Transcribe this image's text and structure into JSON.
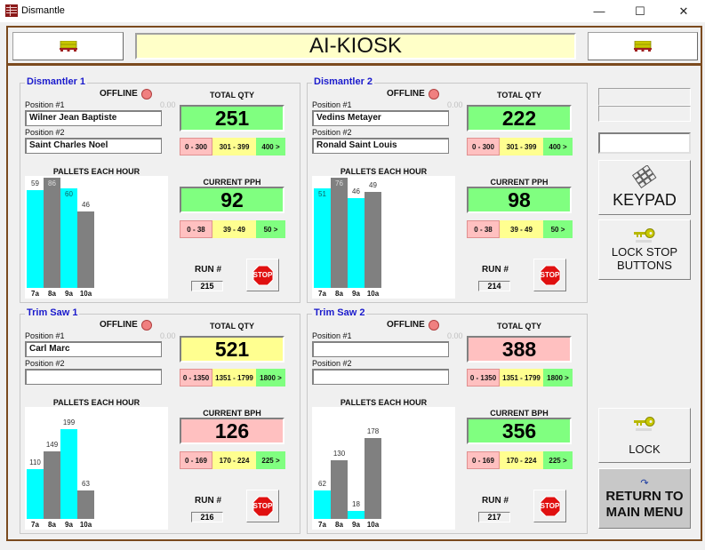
{
  "window": {
    "title": "Dismantle",
    "minimize": "—",
    "maximize": "☐",
    "close": "✕"
  },
  "header": {
    "title": "AI-KIOSK",
    "left_icon": "pallet-icon",
    "right_icon": "pallet-icon"
  },
  "colors": {
    "frame": "#7b4a1e",
    "banner": "#ffffc8",
    "green": "#80ff80",
    "yellow": "#ffff90",
    "red": "#ffc0c0",
    "cyan_bar": "#00ffff",
    "gray_bar": "#808080",
    "group_title": "#1a1acc"
  },
  "stations": [
    {
      "name": "Dismantler 1",
      "status": "OFFLINE",
      "pos1_label": "Position #1",
      "pos2_label": "Position #2",
      "zero": "0.00",
      "pos1": "Wilner Jean Baptiste",
      "pos2": "Saint Charles Noel",
      "total_label": "TOTAL QTY",
      "total": "251",
      "total_color": "#80ff80",
      "total_ranges": [
        "0 - 300",
        "301 - 399",
        "400 >"
      ],
      "chart_title": "PALLETS EACH HOUR",
      "rate_label": "CURRENT PPH",
      "rate": "92",
      "rate_color": "#80ff80",
      "rate_ranges": [
        "0 - 38",
        "39 - 49",
        "50 >"
      ],
      "run_label": "RUN #",
      "run": "215",
      "stop": "STOP"
    },
    {
      "name": "Dismantler 2",
      "status": "OFFLINE",
      "pos1_label": "Position #1",
      "pos2_label": "Position #2",
      "zero": "0.00",
      "pos1": "Vedins Metayer",
      "pos2": "Ronald Saint Louis",
      "total_label": "TOTAL QTY",
      "total": "222",
      "total_color": "#80ff80",
      "total_ranges": [
        "0 - 300",
        "301 - 399",
        "400 >"
      ],
      "chart_title": "PALLETS EACH HOUR",
      "rate_label": "CURRENT PPH",
      "rate": "98",
      "rate_color": "#80ff80",
      "rate_ranges": [
        "0 - 38",
        "39 - 49",
        "50 >"
      ],
      "run_label": "RUN #",
      "run": "214",
      "stop": "STOP"
    },
    {
      "name": "Trim Saw 1",
      "status": "OFFLINE",
      "pos1_label": "Position #1",
      "pos2_label": "Position #2",
      "zero": "0.00",
      "pos1": "Carl Marc",
      "pos2": "",
      "total_label": "TOTAL QTY",
      "total": "521",
      "total_color": "#ffff90",
      "total_ranges": [
        "0 - 1350",
        "1351 - 1799",
        "1800 >"
      ],
      "chart_title": "PALLETS EACH HOUR",
      "rate_label": "CURRENT BPH",
      "rate": "126",
      "rate_color": "#ffc0c0",
      "rate_ranges": [
        "0 - 169",
        "170 - 224",
        "225 >"
      ],
      "run_label": "RUN #",
      "run": "216",
      "stop": "STOP"
    },
    {
      "name": "Trim Saw 2",
      "status": "OFFLINE",
      "pos1_label": "Position #1",
      "pos2_label": "Position #2",
      "zero": "0.00",
      "pos1": "",
      "pos2": "",
      "total_label": "TOTAL QTY",
      "total": "388",
      "total_color": "#ffc0c0",
      "total_ranges": [
        "0 - 1350",
        "1351 - 1799",
        "1800 >"
      ],
      "chart_title": "PALLETS EACH HOUR",
      "rate_label": "CURRENT BPH",
      "rate": "356",
      "rate_color": "#80ff80",
      "rate_ranges": [
        "0 - 169",
        "170 - 224",
        "225 >"
      ],
      "run_label": "RUN #",
      "run": "217",
      "stop": "STOP"
    }
  ],
  "chart_data": [
    {
      "type": "bar",
      "title": "PALLETS EACH HOUR",
      "station": "Dismantler 1",
      "categories": [
        "7a",
        "8a",
        "9a",
        "10a"
      ],
      "values": [
        59,
        86,
        60,
        46
      ],
      "ymax": 60
    },
    {
      "type": "bar",
      "title": "PALLETS EACH HOUR",
      "station": "Dismantler 2",
      "categories": [
        "7a",
        "8a",
        "9a",
        "10a"
      ],
      "values": [
        51,
        76,
        46,
        49
      ],
      "ymax": 51
    },
    {
      "type": "bar",
      "title": "PALLETS EACH HOUR",
      "station": "Trim Saw 1",
      "categories": [
        "7a",
        "8a",
        "9a",
        "10a"
      ],
      "values": [
        110,
        149,
        199,
        63
      ],
      "ymax": 220
    },
    {
      "type": "bar",
      "title": "PALLETS EACH HOUR",
      "station": "Trim Saw 2",
      "categories": [
        "7a",
        "8a",
        "9a",
        "10a"
      ],
      "values": [
        62,
        130,
        18,
        178
      ],
      "ymax": 220
    }
  ],
  "sidebar": {
    "keypad": "KEYPAD",
    "lock_stop": [
      "LOCK STOP",
      "BUTTONS"
    ],
    "lock": "LOCK",
    "return": [
      "RETURN TO",
      "MAIN MENU"
    ]
  }
}
